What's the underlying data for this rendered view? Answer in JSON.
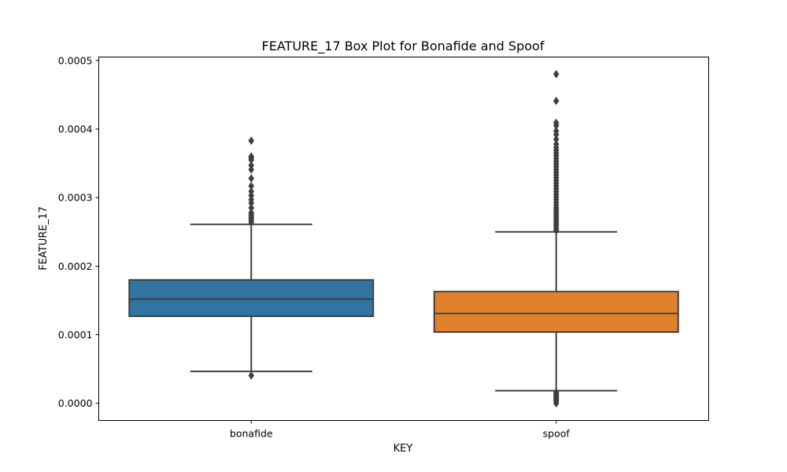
{
  "chart_data": {
    "type": "box",
    "title": "FEATURE_17 Box Plot for Bonafide and Spoof",
    "xlabel": "KEY",
    "ylabel": "FEATURE_17",
    "categories": [
      "bonafide",
      "spoof"
    ],
    "ylim": [
      -2.5e-05,
      0.000505
    ],
    "yticks": [
      0,
      0.0001,
      0.0002,
      0.0003,
      0.0004,
      0.0005
    ],
    "ytick_labels": [
      "0.0000",
      "0.0001",
      "0.0002",
      "0.0003",
      "0.0004",
      "0.0005"
    ],
    "grid": false,
    "colors": {
      "bonafide": "#3274a1",
      "spoof": "#e1812c",
      "line": "#3f3f3f"
    },
    "boxes": [
      {
        "name": "bonafide",
        "whisker_low": 4.65e-05,
        "q1": 0.000127,
        "median": 0.000152,
        "q3": 0.00018,
        "whisker_high": 0.000261,
        "outliers": [
          4.05e-05,
          0.000264,
          0.000267,
          0.00027,
          0.000272,
          0.000275,
          0.000278,
          0.000285,
          0.000292,
          0.000297,
          0.000303,
          0.000309,
          0.000317,
          0.000328,
          0.000341,
          0.000347,
          0.000355,
          0.000358,
          0.00036,
          0.000383
        ]
      },
      {
        "name": "spoof",
        "whisker_low": 1.85e-05,
        "q1": 0.000104,
        "median": 0.000131,
        "q3": 0.000163,
        "whisker_high": 0.00025,
        "outliers": [
          0,
          3e-06,
          5e-06,
          7e-06,
          9e-06,
          1.1e-05,
          1.3e-05,
          1.5e-05,
          1.6e-05,
          0.000252,
          0.000255,
          0.000258,
          0.000261,
          0.000264,
          0.000267,
          0.00027,
          0.000273,
          0.000276,
          0.000279,
          0.000282,
          0.000285,
          0.000289,
          0.000293,
          0.000297,
          0.000301,
          0.000305,
          0.000309,
          0.000313,
          0.000317,
          0.000321,
          0.000325,
          0.000329,
          0.000333,
          0.000337,
          0.000341,
          0.000345,
          0.000349,
          0.000353,
          0.000357,
          0.000361,
          0.000365,
          0.000369,
          0.000373,
          0.000378,
          0.000385,
          0.000392,
          0.000397,
          0.000405,
          0.000409,
          0.000441,
          0.00048
        ]
      }
    ]
  }
}
